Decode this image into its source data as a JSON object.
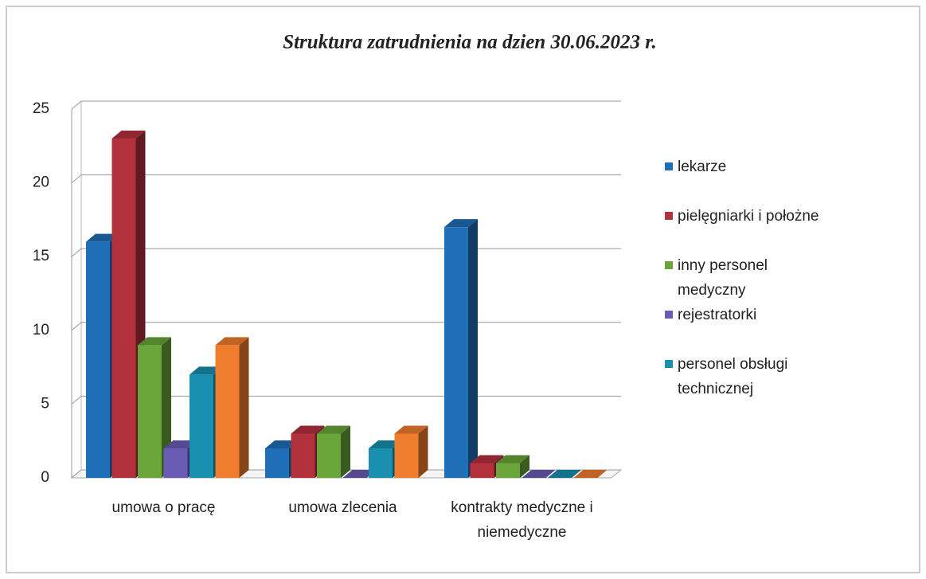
{
  "chart_data": {
    "type": "bar3d",
    "title": "Struktura zatrudnienia na dzien 30.06.2023 r.",
    "categories": [
      "umowa o pracę",
      "umowa zlecenia",
      "kontrakty medyczne i niemedyczne"
    ],
    "series": [
      {
        "name": "lekarze",
        "color": "#1f6fb8",
        "values": [
          16,
          2,
          17
        ]
      },
      {
        "name": "pielęgniarki i położne",
        "color": "#b3303d",
        "values": [
          23,
          3,
          1
        ]
      },
      {
        "name": "inny personel medyczny",
        "color": "#6aa53a",
        "values": [
          9,
          3,
          1
        ]
      },
      {
        "name": "rejestratorki",
        "color": "#6a5bb5",
        "values": [
          2,
          0,
          0
        ]
      },
      {
        "name": "personel obsługi technicznej",
        "color": "#1a8fb0",
        "values": [
          7,
          2,
          0
        ]
      },
      {
        "color": "#f07d2e",
        "values": [
          9,
          3,
          0
        ]
      }
    ],
    "ylim": [
      0,
      25
    ],
    "yticks": [
      0,
      5,
      10,
      15,
      20,
      25
    ],
    "grid": true,
    "legend": "right"
  }
}
